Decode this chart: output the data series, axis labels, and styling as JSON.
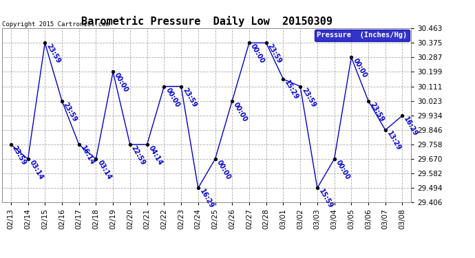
{
  "title": "Barometric Pressure  Daily Low  20150309",
  "copyright": "Copyright 2015 Cartronics.com",
  "legend_label": "Pressure  (Inches/Hg)",
  "background_color": "#ffffff",
  "plot_bg_color": "#ffffff",
  "grid_color": "#aaaaaa",
  "line_color": "#0000cc",
  "marker_color": "#000000",
  "text_color": "#0000cc",
  "ylim": [
    29.406,
    30.463
  ],
  "yticks": [
    29.406,
    29.494,
    29.582,
    29.67,
    29.758,
    29.846,
    29.934,
    30.023,
    30.111,
    30.199,
    30.287,
    30.375,
    30.463
  ],
  "dates": [
    "02/13",
    "02/14",
    "02/15",
    "02/16",
    "02/17",
    "02/18",
    "02/19",
    "02/20",
    "02/21",
    "02/22",
    "02/23",
    "02/24",
    "02/25",
    "02/26",
    "02/27",
    "02/28",
    "03/01",
    "03/02",
    "03/03",
    "03/04",
    "03/05",
    "03/06",
    "03/07",
    "03/08"
  ],
  "values": [
    29.758,
    29.67,
    30.375,
    30.023,
    29.758,
    29.67,
    30.199,
    29.758,
    29.758,
    30.111,
    30.111,
    29.494,
    29.67,
    30.023,
    30.375,
    30.375,
    30.155,
    30.111,
    29.494,
    29.67,
    30.287,
    30.023,
    29.846,
    29.934
  ],
  "time_labels": [
    "23:59",
    "03:14",
    "23:59",
    "23:59",
    "16:14",
    "03:14",
    "00:00",
    "22:59",
    "04:14",
    "00:00",
    "23:59",
    "16:29",
    "00:00",
    "00:00",
    "00:00",
    "23:59",
    "15:29",
    "23:59",
    "15:59",
    "00:00",
    "00:00",
    "23:59",
    "13:29",
    "16:29"
  ],
  "title_fontsize": 11,
  "tick_fontsize": 7.5,
  "label_fontsize": 7,
  "legend_fontsize": 7.5
}
